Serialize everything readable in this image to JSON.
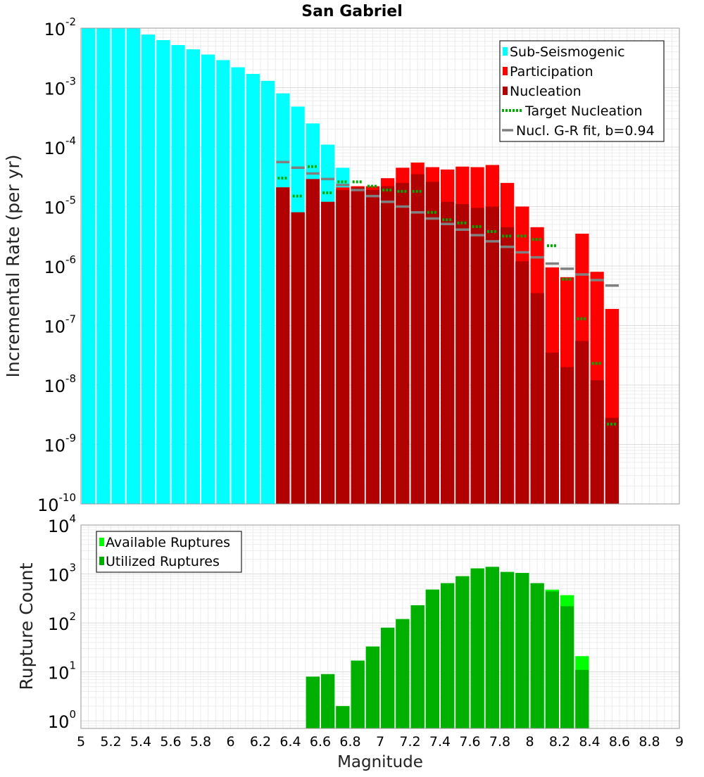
{
  "chart_data": [
    {
      "type": "bar",
      "title": "San Gabriel",
      "ylabel": "Incremental Rate (per yr)",
      "xlabel": "",
      "xlim": [
        5,
        9
      ],
      "ylim": [
        1e-10,
        0.01
      ],
      "yscale": "log",
      "grid": true,
      "legend_position": "top-right",
      "bin_width": 0.1,
      "y_tick_labels": [
        {
          "base": "10",
          "exp": "-2",
          "v": 0.01
        },
        {
          "base": "10",
          "exp": "-3",
          "v": 0.001
        },
        {
          "base": "10",
          "exp": "-4",
          "v": 0.0001
        },
        {
          "base": "10",
          "exp": "-5",
          "v": 1e-05
        },
        {
          "base": "10",
          "exp": "-6",
          "v": 1e-06
        },
        {
          "base": "10",
          "exp": "-7",
          "v": 1e-07
        },
        {
          "base": "10",
          "exp": "-8",
          "v": 1e-08
        },
        {
          "base": "10",
          "exp": "-9",
          "v": 1e-09
        },
        {
          "base": "10",
          "exp": "-10",
          "v": 1e-10
        }
      ],
      "legend": [
        {
          "label": "Sub-Seismogenic",
          "color": "#00ffff",
          "style": "bar"
        },
        {
          "label": "Participation",
          "color": "#ff0000",
          "style": "bar"
        },
        {
          "label": "Nucleation",
          "color": "#b00000",
          "style": "bar"
        },
        {
          "label": "Target Nucleation",
          "color": "#00aa00",
          "style": "dotted"
        },
        {
          "label": "Nucl. G-R fit, b=0.94",
          "color": "#808080",
          "style": "line"
        }
      ],
      "series": [
        {
          "name": "Sub-Seismogenic",
          "color": "#00ffff",
          "x": [
            5.05,
            5.15,
            5.25,
            5.35,
            5.45,
            5.55,
            5.65,
            5.75,
            5.85,
            5.95,
            6.05,
            6.15,
            6.25,
            6.35,
            6.45,
            6.55,
            6.65,
            6.75
          ],
          "values": [
            0.01,
            0.01,
            0.01,
            0.01,
            0.0078,
            0.0063,
            0.0052,
            0.0044,
            0.0036,
            0.0029,
            0.0022,
            0.0017,
            0.0013,
            0.0008,
            0.00048,
            0.00025,
            0.00011,
            4.5e-05
          ]
        },
        {
          "name": "Participation",
          "color": "#ff0000",
          "x": [
            6.35,
            6.45,
            6.55,
            6.65,
            6.75,
            6.85,
            6.95,
            7.05,
            7.15,
            7.25,
            7.35,
            7.45,
            7.55,
            7.65,
            7.75,
            7.85,
            7.95,
            8.05,
            8.15,
            8.25,
            8.35,
            8.45,
            8.55
          ],
          "values": [
            2.1e-05,
            8e-06,
            2.9e-05,
            1.2e-05,
            2.1e-05,
            2.2e-05,
            2.2e-05,
            3e-05,
            4.5e-05,
            5.5e-05,
            4.6e-05,
            4.2e-05,
            4.7e-05,
            4.6e-05,
            5e-05,
            2.5e-05,
            1e-05,
            4.5e-06,
            9.5e-07,
            6.5e-07,
            3.5e-06,
            8e-07,
            1.9e-07
          ]
        },
        {
          "name": "Nucleation",
          "color": "#b00000",
          "x": [
            6.35,
            6.45,
            6.55,
            6.65,
            6.75,
            6.85,
            6.95,
            7.05,
            7.15,
            7.25,
            7.35,
            7.45,
            7.55,
            7.65,
            7.75,
            7.85,
            7.95,
            8.05,
            8.15,
            8.25,
            8.35,
            8.45,
            8.55
          ],
          "values": [
            2.1e-05,
            8e-06,
            2.9e-05,
            1.2e-05,
            1.9e-05,
            2.1e-05,
            1.9e-05,
            2.2e-05,
            2.5e-05,
            3.5e-05,
            2.6e-05,
            1.2e-05,
            1.1e-05,
            9.5e-06,
            1e-05,
            4.5e-06,
            1.2e-06,
            3.5e-07,
            3.5e-08,
            2e-08,
            5.5e-08,
            1.2e-08,
            2.8e-09
          ]
        },
        {
          "name": "Target Nucleation",
          "color": "#00aa00",
          "x": [
            6.35,
            6.45,
            6.55,
            6.65,
            6.75,
            6.85,
            6.95,
            7.05,
            7.15,
            7.25,
            7.35,
            7.45,
            7.55,
            7.65,
            7.75,
            7.85,
            7.95,
            8.05,
            8.15,
            8.25,
            8.35,
            8.45,
            8.55
          ],
          "values": [
            3e-05,
            1.5e-05,
            4.7e-05,
            1.7e-05,
            2.6e-05,
            2.6e-05,
            2.2e-05,
            1.9e-05,
            1.8e-05,
            1.8e-05,
            8e-06,
            6e-06,
            5.3e-06,
            4.6e-06,
            3.8e-06,
            3.2e-06,
            3.2e-06,
            2.8e-06,
            2.2e-06,
            6e-07,
            1.3e-07,
            2.3e-08,
            2.2e-09
          ]
        },
        {
          "name": "Nucl. G-R fit, b=0.94",
          "color": "#808080",
          "x": [
            6.35,
            6.45,
            6.55,
            6.65,
            6.75,
            6.85,
            6.95,
            7.05,
            7.15,
            7.25,
            7.35,
            7.45,
            7.55,
            7.65,
            7.75,
            7.85,
            7.95,
            8.05,
            8.15,
            8.25,
            8.35,
            8.45,
            8.55
          ],
          "values": [
            5.6e-05,
            4.5e-05,
            3.6e-05,
            2.9e-05,
            2.3e-05,
            1.9e-05,
            1.5e-05,
            1.2e-05,
            1e-05,
            8e-06,
            6.3e-06,
            5.1e-06,
            4.1e-06,
            3.3e-06,
            2.6e-06,
            2.1e-06,
            1.7e-06,
            1.4e-06,
            1.1e-06,
            9e-07,
            7.2e-07,
            5.8e-07,
            4.7e-07
          ]
        }
      ]
    },
    {
      "type": "bar",
      "title": "",
      "ylabel": "Rupture Count",
      "xlabel": "Magnitude",
      "xlim": [
        5,
        9
      ],
      "ylim": [
        0.7,
        10000
      ],
      "yscale": "log",
      "grid": true,
      "legend_position": "top-left",
      "bin_width": 0.1,
      "x_ticks": [
        "5",
        "5.2",
        "5.4",
        "5.6",
        "5.8",
        "6",
        "6.2",
        "6.4",
        "6.6",
        "6.8",
        "7",
        "7.2",
        "7.4",
        "7.6",
        "7.8",
        "8",
        "8.2",
        "8.4",
        "8.6",
        "8.8",
        "9"
      ],
      "y_tick_labels": [
        {
          "base": "10",
          "exp": "4",
          "v": 10000
        },
        {
          "base": "10",
          "exp": "3",
          "v": 1000
        },
        {
          "base": "10",
          "exp": "2",
          "v": 100
        },
        {
          "base": "10",
          "exp": "1",
          "v": 10
        },
        {
          "base": "10",
          "exp": "0",
          "v": 1
        }
      ],
      "legend": [
        {
          "label": "Available Ruptures",
          "color": "#00ff00",
          "style": "bar"
        },
        {
          "label": "Utilized Ruptures",
          "color": "#00b000",
          "style": "bar"
        }
      ],
      "series": [
        {
          "name": "Available Ruptures",
          "color": "#00ff00",
          "x": [
            6.55,
            6.65,
            6.75,
            6.85,
            6.95,
            7.05,
            7.15,
            7.25,
            7.35,
            7.45,
            7.55,
            7.65,
            7.75,
            7.85,
            7.95,
            8.05,
            8.15,
            8.25,
            8.35
          ],
          "values": [
            8,
            9,
            2,
            17,
            33,
            80,
            120,
            230,
            480,
            650,
            900,
            1300,
            1400,
            1100,
            1050,
            650,
            480,
            370,
            21
          ]
        },
        {
          "name": "Utilized Ruptures",
          "color": "#00b000",
          "x": [
            6.55,
            6.65,
            6.75,
            6.85,
            6.95,
            7.05,
            7.15,
            7.25,
            7.35,
            7.45,
            7.55,
            7.65,
            7.75,
            7.85,
            7.95,
            8.05,
            8.15,
            8.25,
            8.35
          ],
          "values": [
            8,
            9,
            2,
            17,
            33,
            80,
            120,
            230,
            480,
            650,
            900,
            1300,
            1400,
            1100,
            1050,
            650,
            440,
            220,
            11
          ]
        }
      ]
    }
  ]
}
